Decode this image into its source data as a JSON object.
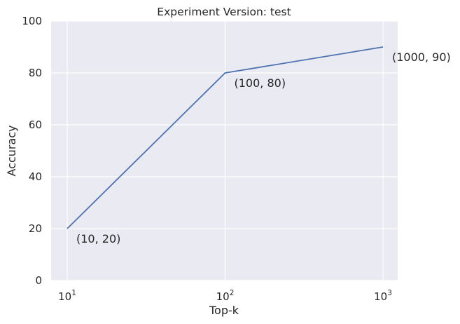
{
  "chart_data": {
    "type": "line",
    "title": "Experiment Version: test",
    "xlabel": "Top-k",
    "ylabel": "Accuracy",
    "x_scale": "log",
    "x": [
      10,
      100,
      1000
    ],
    "y": [
      20,
      80,
      90
    ],
    "ylim": [
      0,
      100
    ],
    "y_ticks": [
      "0",
      "20",
      "40",
      "60",
      "80",
      "100"
    ],
    "x_ticks": [
      {
        "base": "10",
        "exp": "1"
      },
      {
        "base": "10",
        "exp": "2"
      },
      {
        "base": "10",
        "exp": "3"
      }
    ],
    "annotations": [
      "(10, 20)",
      "(100, 80)",
      "(1000, 90)"
    ],
    "grid": true,
    "colors": {
      "line": "#4c72b0",
      "plot_background": "#eaeaf2",
      "grid": "#ffffff",
      "text": "#262626"
    }
  }
}
